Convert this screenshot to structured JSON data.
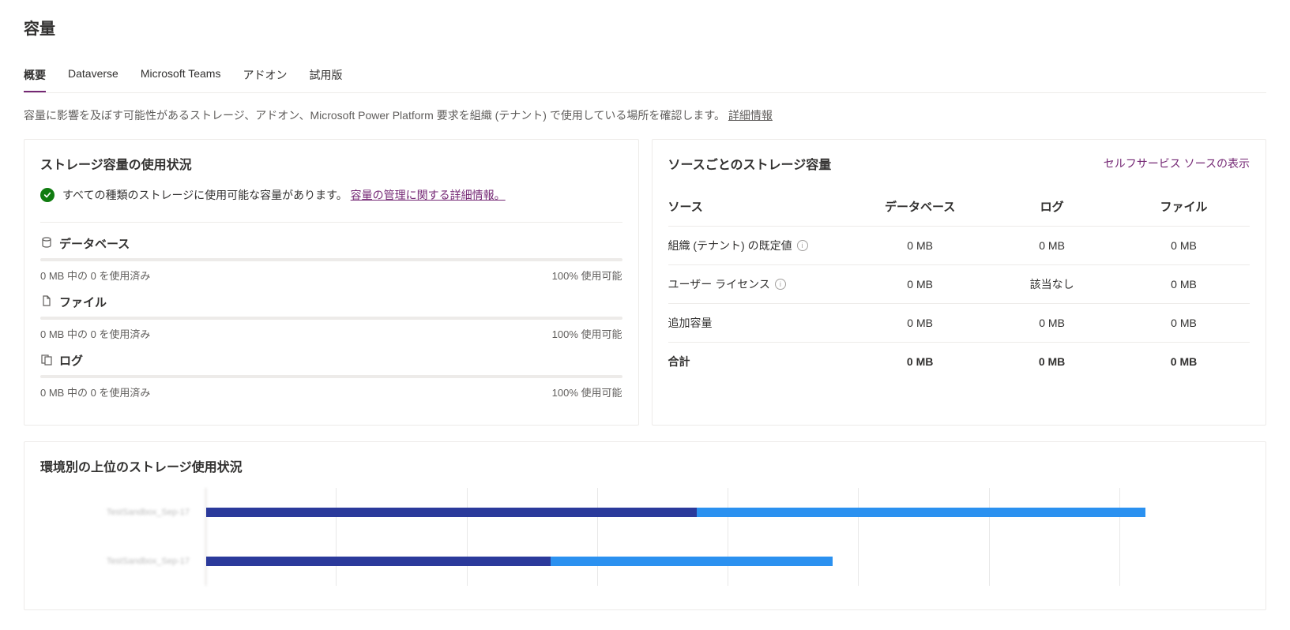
{
  "page": {
    "title": "容量"
  },
  "tabs": [
    {
      "label": "概要",
      "active": true
    },
    {
      "label": "Dataverse",
      "active": false
    },
    {
      "label": "Microsoft Teams",
      "active": false
    },
    {
      "label": "アドオン",
      "active": false
    },
    {
      "label": "試用版",
      "active": false
    }
  ],
  "description": {
    "text": "容量に影響を及ぼす可能性があるストレージ、アドオン、Microsoft Power Platform 要求を組織 (テナント) で使用している場所を確認します。 ",
    "link": "詳細情報"
  },
  "usage_card": {
    "title": "ストレージ容量の使用状況",
    "status_text": "すべての種類のストレージに使用可能な容量があります。 ",
    "status_link": "容量の管理に関する詳細情報。",
    "items": [
      {
        "icon": "database",
        "label": "データベース",
        "used": "0 MB 中の 0 を使用済み",
        "available": "100% 使用可能"
      },
      {
        "icon": "file",
        "label": "ファイル",
        "used": "0 MB 中の 0 を使用済み",
        "available": "100% 使用可能"
      },
      {
        "icon": "log",
        "label": "ログ",
        "used": "0 MB 中の 0 を使用済み",
        "available": "100% 使用可能"
      }
    ]
  },
  "source_card": {
    "title": "ソースごとのストレージ容量",
    "link": "セルフサービス ソースの表示",
    "columns": {
      "source": "ソース",
      "database": "データベース",
      "log": "ログ",
      "file": "ファイル"
    },
    "rows": [
      {
        "source": "組織 (テナント) の既定値",
        "info": true,
        "database": "0 MB",
        "log": "0 MB",
        "file": "0 MB"
      },
      {
        "source": "ユーザー ライセンス",
        "info": true,
        "database": "0 MB",
        "log": "該当なし",
        "file": "0 MB"
      },
      {
        "source": "追加容量",
        "info": false,
        "database": "0 MB",
        "log": "0 MB",
        "file": "0 MB"
      }
    ],
    "footer": {
      "source": "合計",
      "database": "0 MB",
      "log": "0 MB",
      "file": "0 MB"
    }
  },
  "env_chart": {
    "title": "環境別の上位のストレージ使用状況",
    "type": "stacked-bar-horizontal",
    "grid_divisions": 8,
    "colors": {
      "seg1": "#2b3a9b",
      "seg2": "#2b91f0",
      "track": "#edebe9"
    },
    "rows": [
      {
        "label": "TestSandbox_Sep-17",
        "seg1_pct": 47,
        "seg2_pct": 43
      },
      {
        "label": "TestSandbox_Sep-17",
        "seg1_pct": 33,
        "seg2_pct": 27
      }
    ]
  }
}
